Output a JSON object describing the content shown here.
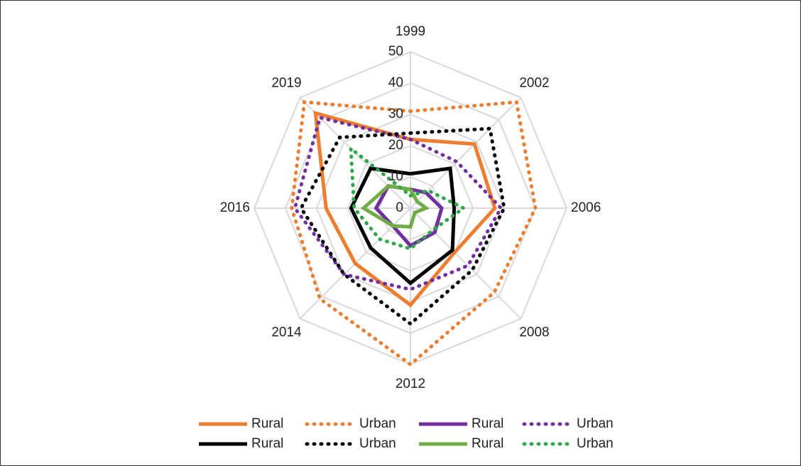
{
  "chart_data": {
    "type": "radar",
    "categories": [
      "1999",
      "2002",
      "2006",
      "2008",
      "2012",
      "2014",
      "2016",
      "2019"
    ],
    "rlim": [
      0,
      50
    ],
    "rticks": [
      0,
      10,
      20,
      30,
      40,
      50
    ],
    "grid": true,
    "legend": "bottom",
    "series": [
      {
        "name": "Rural",
        "color": "#ed7d31",
        "dash": "solid",
        "values": [
          22,
          29,
          27,
          20,
          31,
          25,
          27,
          43
        ]
      },
      {
        "name": "Urban",
        "color": "#ed7d31",
        "dash": "dotted",
        "values": [
          31,
          48,
          40,
          38,
          50,
          41,
          38,
          48
        ]
      },
      {
        "name": "Rural",
        "color": "#7030a0",
        "dash": "solid",
        "values": [
          6,
          7,
          10,
          11,
          12,
          8,
          11,
          10
        ]
      },
      {
        "name": "Urban",
        "color": "#7030a0",
        "dash": "dotted",
        "values": [
          22,
          21,
          29,
          26,
          26,
          30,
          37,
          41
        ]
      },
      {
        "name": "Rural",
        "color": "#000000",
        "dash": "solid",
        "values": [
          11,
          18,
          14,
          19,
          24,
          18,
          19,
          18
        ]
      },
      {
        "name": "Urban",
        "color": "#000000",
        "dash": "dotted",
        "values": [
          24,
          36,
          30,
          28,
          37,
          30,
          35,
          32
        ]
      },
      {
        "name": "Rural",
        "color": "#70ad47",
        "dash": "solid",
        "values": [
          6,
          3,
          5,
          2,
          6,
          8,
          15,
          10
        ]
      },
      {
        "name": "Urban",
        "color": "#2ea84a",
        "dash": "dotted",
        "values": [
          4,
          8,
          17,
          10,
          13,
          14,
          18,
          27
        ]
      }
    ]
  }
}
